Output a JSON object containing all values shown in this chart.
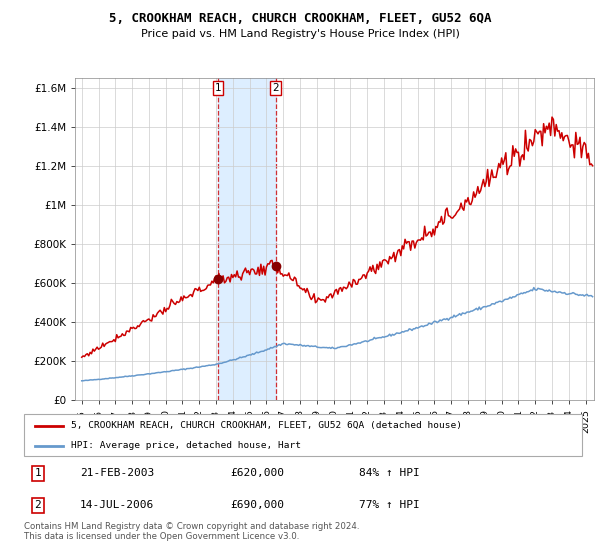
{
  "title": "5, CROOKHAM REACH, CHURCH CROOKHAM, FLEET, GU52 6QA",
  "subtitle": "Price paid vs. HM Land Registry's House Price Index (HPI)",
  "red_label": "5, CROOKHAM REACH, CHURCH CROOKHAM, FLEET, GU52 6QA (detached house)",
  "blue_label": "HPI: Average price, detached house, Hart",
  "sale1_date": 2003.12,
  "sale1_price": 620000,
  "sale2_date": 2006.54,
  "sale2_price": 690000,
  "annotation1": [
    "1",
    "21-FEB-2003",
    "£620,000",
    "84% ↑ HPI"
  ],
  "annotation2": [
    "2",
    "14-JUL-2006",
    "£690,000",
    "77% ↑ HPI"
  ],
  "footer": "Contains HM Land Registry data © Crown copyright and database right 2024.\nThis data is licensed under the Open Government Licence v3.0.",
  "red_color": "#cc0000",
  "blue_color": "#6699cc",
  "shade_color": "#ddeeff",
  "background_color": "#ffffff",
  "grid_color": "#cccccc",
  "ylim": [
    0,
    1650000
  ],
  "yticks": [
    0,
    200000,
    400000,
    600000,
    800000,
    1000000,
    1200000,
    1400000,
    1600000
  ],
  "ytick_labels": [
    "£0",
    "£200K",
    "£400K",
    "£600K",
    "£800K",
    "£1M",
    "£1.2M",
    "£1.4M",
    "£1.6M"
  ],
  "xlim_start": 1994.6,
  "xlim_end": 2025.5
}
